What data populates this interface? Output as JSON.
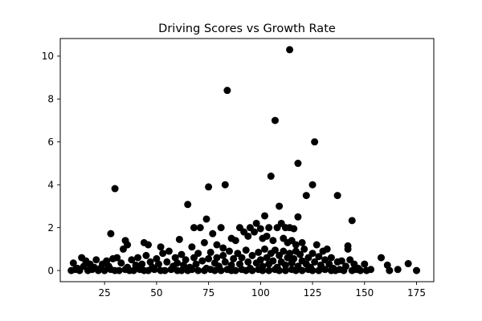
{
  "chart_data": {
    "type": "scatter",
    "title": "Driving Scores vs Growth Rate",
    "xlabel": "",
    "ylabel": "",
    "xlim": [
      3.7,
      183.3
    ],
    "ylim": [
      -0.52,
      10.82
    ],
    "xticks": [
      25,
      50,
      75,
      100,
      125,
      150,
      175
    ],
    "yticks": [
      0,
      2,
      4,
      6,
      8,
      10
    ],
    "grid": false,
    "legend": "none",
    "marker_color": "#000000",
    "series": [
      {
        "points": [
          [
            114,
            10.3
          ],
          [
            84,
            8.4
          ],
          [
            107,
            7.0
          ],
          [
            126,
            6.0
          ],
          [
            118,
            5.0
          ],
          [
            105,
            4.4
          ],
          [
            30,
            3.82
          ],
          [
            83,
            4.0
          ],
          [
            75,
            3.9
          ],
          [
            125,
            4.0
          ],
          [
            122,
            3.5
          ],
          [
            137,
            3.5
          ],
          [
            65,
            3.08
          ],
          [
            109,
            3.0
          ],
          [
            144,
            2.33
          ],
          [
            74,
            2.4
          ],
          [
            102,
            2.55
          ],
          [
            118,
            2.5
          ],
          [
            28,
            1.72
          ],
          [
            68,
            2.0
          ],
          [
            71,
            2.0
          ],
          [
            81,
            2.0
          ],
          [
            90,
            2.0
          ],
          [
            95,
            2.0
          ],
          [
            98,
            2.2
          ],
          [
            100,
            1.95
          ],
          [
            104,
            2.0
          ],
          [
            108,
            2.0
          ],
          [
            110,
            2.2
          ],
          [
            112,
            2.0
          ],
          [
            114,
            2.0
          ],
          [
            116,
            1.95
          ],
          [
            77,
            1.72
          ],
          [
            86,
            1.5
          ],
          [
            88,
            1.4
          ],
          [
            92,
            1.8
          ],
          [
            94,
            1.6
          ],
          [
            97,
            1.8
          ],
          [
            101,
            1.5
          ],
          [
            103,
            1.6
          ],
          [
            106,
            1.4
          ],
          [
            111,
            1.5
          ],
          [
            113,
            1.3
          ],
          [
            115,
            1.4
          ],
          [
            117,
            1.2
          ],
          [
            120,
            1.3
          ],
          [
            127,
            1.2
          ],
          [
            142,
            1.0
          ],
          [
            142,
            1.15
          ],
          [
            35,
            1.4
          ],
          [
            36,
            1.2
          ],
          [
            34,
            1.0
          ],
          [
            44,
            1.3
          ],
          [
            46,
            1.2
          ],
          [
            52,
            1.1
          ],
          [
            61,
            1.45
          ],
          [
            67,
            1.1
          ],
          [
            73,
            1.3
          ],
          [
            79,
            1.2
          ],
          [
            82,
            1.05
          ],
          [
            10,
            0.35
          ],
          [
            12,
            0.1
          ],
          [
            14,
            0.6
          ],
          [
            15,
            0.2
          ],
          [
            16,
            0.45
          ],
          [
            18,
            0.3
          ],
          [
            20,
            0.15
          ],
          [
            21,
            0.5
          ],
          [
            23,
            0.1
          ],
          [
            24,
            0.3
          ],
          [
            26,
            0.45
          ],
          [
            27,
            0.2
          ],
          [
            29,
            0.55
          ],
          [
            31,
            0.6
          ],
          [
            33,
            0.35
          ],
          [
            36,
            0.15
          ],
          [
            38,
            0.5
          ],
          [
            40,
            0.25
          ],
          [
            41,
            0.6
          ],
          [
            43,
            0.3
          ],
          [
            45,
            0.7
          ],
          [
            47,
            0.4
          ],
          [
            48,
            0.15
          ],
          [
            50,
            0.55
          ],
          [
            51,
            0.3
          ],
          [
            53,
            0.8
          ],
          [
            55,
            0.4
          ],
          [
            56,
            0.9
          ],
          [
            58,
            0.2
          ],
          [
            59,
            0.6
          ],
          [
            60,
            0.35
          ],
          [
            62,
            0.75
          ],
          [
            63,
            0.25
          ],
          [
            64,
            0.5
          ],
          [
            66,
            0.15
          ],
          [
            68,
            0.6
          ],
          [
            69,
            0.3
          ],
          [
            70,
            0.8
          ],
          [
            72,
            0.45
          ],
          [
            74,
            0.1
          ],
          [
            75,
            0.55
          ],
          [
            76,
            0.85
          ],
          [
            78,
            0.35
          ],
          [
            79,
            0.6
          ],
          [
            80,
            0.2
          ],
          [
            82,
            0.7
          ],
          [
            83,
            0.4
          ],
          [
            85,
            0.9
          ],
          [
            86,
            0.25
          ],
          [
            87,
            0.55
          ],
          [
            89,
            0.8
          ],
          [
            90,
            0.3
          ],
          [
            91,
            0.6
          ],
          [
            93,
            0.95
          ],
          [
            94,
            0.4
          ],
          [
            95,
            0.1
          ],
          [
            96,
            0.7
          ],
          [
            98,
            0.35
          ],
          [
            99,
            0.85
          ],
          [
            100,
            0.5
          ],
          [
            101,
            0.2
          ],
          [
            102,
            1.0
          ],
          [
            103,
            0.6
          ],
          [
            104,
            0.3
          ],
          [
            105,
            0.8
          ],
          [
            106,
            0.45
          ],
          [
            107,
            0.95
          ],
          [
            108,
            0.15
          ],
          [
            109,
            0.7
          ],
          [
            110,
            0.4
          ],
          [
            111,
            0.9
          ],
          [
            112,
            0.25
          ],
          [
            113,
            0.6
          ],
          [
            114,
            0.8
          ],
          [
            115,
            0.35
          ],
          [
            116,
            0.55
          ],
          [
            117,
            0.9
          ],
          [
            118,
            0.2
          ],
          [
            119,
            0.75
          ],
          [
            120,
            0.45
          ],
          [
            121,
            1.0
          ],
          [
            122,
            0.3
          ],
          [
            123,
            0.6
          ],
          [
            124,
            0.15
          ],
          [
            125,
            0.8
          ],
          [
            126,
            0.4
          ],
          [
            128,
            0.65
          ],
          [
            129,
            0.25
          ],
          [
            130,
            0.9
          ],
          [
            131,
            0.5
          ],
          [
            132,
            1.0
          ],
          [
            133,
            0.3
          ],
          [
            134,
            0.6
          ],
          [
            135,
            0.1
          ],
          [
            137,
            0.4
          ],
          [
            139,
            0.45
          ],
          [
            141,
            0.2
          ],
          [
            143,
            0.5
          ],
          [
            145,
            0.3
          ],
          [
            147,
            0.1
          ],
          [
            150,
            0.3
          ],
          [
            151,
            0.0
          ],
          [
            153,
            0.05
          ],
          [
            158,
            0.6
          ],
          [
            161,
            0.25
          ],
          [
            162,
            0.0
          ],
          [
            166,
            0.05
          ],
          [
            171,
            0.32
          ],
          [
            175,
            0.0
          ],
          [
            9,
            0.0
          ],
          [
            11,
            0.05
          ],
          [
            13,
            0.0
          ],
          [
            17,
            0.0
          ],
          [
            19,
            0.05
          ],
          [
            22,
            0.0
          ],
          [
            25,
            0.0
          ],
          [
            28,
            0.05
          ],
          [
            30,
            0.0
          ],
          [
            32,
            0.0
          ],
          [
            35,
            0.05
          ],
          [
            37,
            0.0
          ],
          [
            39,
            0.0
          ],
          [
            42,
            0.05
          ],
          [
            44,
            0.0
          ],
          [
            46,
            0.0
          ],
          [
            49,
            0.05
          ],
          [
            52,
            0.0
          ],
          [
            54,
            0.0
          ],
          [
            57,
            0.05
          ],
          [
            60,
            0.0
          ],
          [
            62,
            0.0
          ],
          [
            65,
            0.0
          ],
          [
            67,
            0.05
          ],
          [
            70,
            0.0
          ],
          [
            73,
            0.0
          ],
          [
            76,
            0.05
          ],
          [
            78,
            0.0
          ],
          [
            81,
            0.0
          ],
          [
            84,
            0.05
          ],
          [
            86,
            0.0
          ],
          [
            88,
            0.0
          ],
          [
            91,
            0.05
          ],
          [
            93,
            0.0
          ],
          [
            96,
            0.0
          ],
          [
            99,
            0.05
          ],
          [
            101,
            0.0
          ],
          [
            104,
            0.0
          ],
          [
            107,
            0.05
          ],
          [
            109,
            0.0
          ],
          [
            112,
            0.0
          ],
          [
            115,
            0.05
          ],
          [
            117,
            0.0
          ],
          [
            120,
            0.0
          ],
          [
            123,
            0.05
          ],
          [
            125,
            0.0
          ],
          [
            128,
            0.0
          ],
          [
            131,
            0.05
          ],
          [
            134,
            0.0
          ],
          [
            136,
            0.0
          ],
          [
            138,
            0.05
          ],
          [
            140,
            0.0
          ],
          [
            144,
            0.0
          ],
          [
            146,
            0.05
          ],
          [
            148,
            0.0
          ]
        ]
      }
    ]
  }
}
